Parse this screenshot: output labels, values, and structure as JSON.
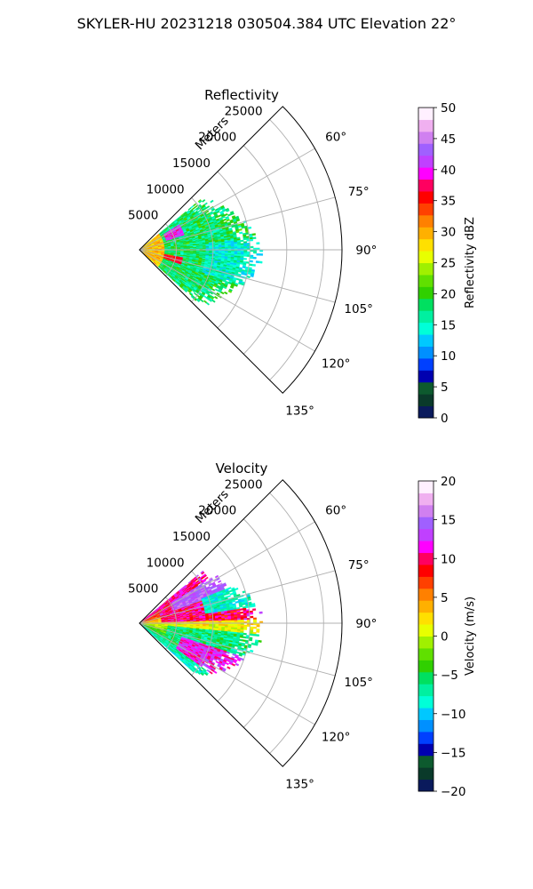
{
  "figure": {
    "suptitle": "SKYLER-HU  20231218  030504.384 UTC Elevation 22°"
  },
  "chart_data": [
    {
      "type": "heatmap",
      "projection": "polar-sector",
      "title": "Reflectivity",
      "r_axis_label": "Meters",
      "r_ticks": [
        "5000",
        "10000",
        "15000",
        "20000",
        "25000"
      ],
      "r_tick_values": [
        5000,
        10000,
        15000,
        20000,
        25000
      ],
      "r_max": 27500,
      "theta_ticks": [
        "60°",
        "75°",
        "90°",
        "105°",
        "120°",
        "135°"
      ],
      "theta_tick_values": [
        60,
        75,
        90,
        105,
        120,
        135
      ],
      "theta_range": [
        45,
        135
      ],
      "grid": true,
      "colorbar": {
        "label": "Reflectivity dBZ",
        "ticks": [
          "0",
          "5",
          "10",
          "15",
          "20",
          "25",
          "30",
          "35",
          "40",
          "45",
          "50"
        ],
        "range": [
          0,
          50
        ],
        "colors": [
          "#0a1a5c",
          "#0a3a2a",
          "#0d5a2e",
          "#0000b0",
          "#0040ff",
          "#0090ff",
          "#00c8ff",
          "#00ffd8",
          "#00f0a0",
          "#00e060",
          "#30d000",
          "#60e000",
          "#a0f000",
          "#e8ff00",
          "#ffe000",
          "#ffb000",
          "#ff8000",
          "#ff4000",
          "#ff0000",
          "#ff0060",
          "#ff00ff",
          "#c040ff",
          "#a060ff",
          "#d080f0",
          "#f0b0f0",
          "#fff0ff"
        ]
      }
    },
    {
      "type": "heatmap",
      "projection": "polar-sector",
      "title": "Velocity",
      "r_axis_label": "Meters",
      "r_ticks": [
        "5000",
        "10000",
        "15000",
        "20000",
        "25000"
      ],
      "r_tick_values": [
        5000,
        10000,
        15000,
        20000,
        25000
      ],
      "r_max": 27500,
      "theta_ticks": [
        "60°",
        "75°",
        "90°",
        "105°",
        "120°",
        "135°"
      ],
      "theta_tick_values": [
        60,
        75,
        90,
        105,
        120,
        135
      ],
      "theta_range": [
        45,
        135
      ],
      "grid": true,
      "colorbar": {
        "label": "Velocity (m/s)",
        "ticks": [
          "−20",
          "−15",
          "−10",
          "−5",
          "0",
          "5",
          "10",
          "15",
          "20"
        ],
        "range": [
          -20,
          20
        ],
        "colors": [
          "#0a1a5c",
          "#0a3a2a",
          "#0d5a2e",
          "#0000b0",
          "#0040ff",
          "#0090ff",
          "#00c8ff",
          "#00ffd8",
          "#00f0a0",
          "#00e060",
          "#30d000",
          "#60e000",
          "#a0f000",
          "#e8ff00",
          "#ffe000",
          "#ffb000",
          "#ff8000",
          "#ff4000",
          "#ff0000",
          "#ff0060",
          "#ff00ff",
          "#c040ff",
          "#a060ff",
          "#d080f0",
          "#f0b0f0",
          "#fff0ff"
        ]
      }
    }
  ]
}
